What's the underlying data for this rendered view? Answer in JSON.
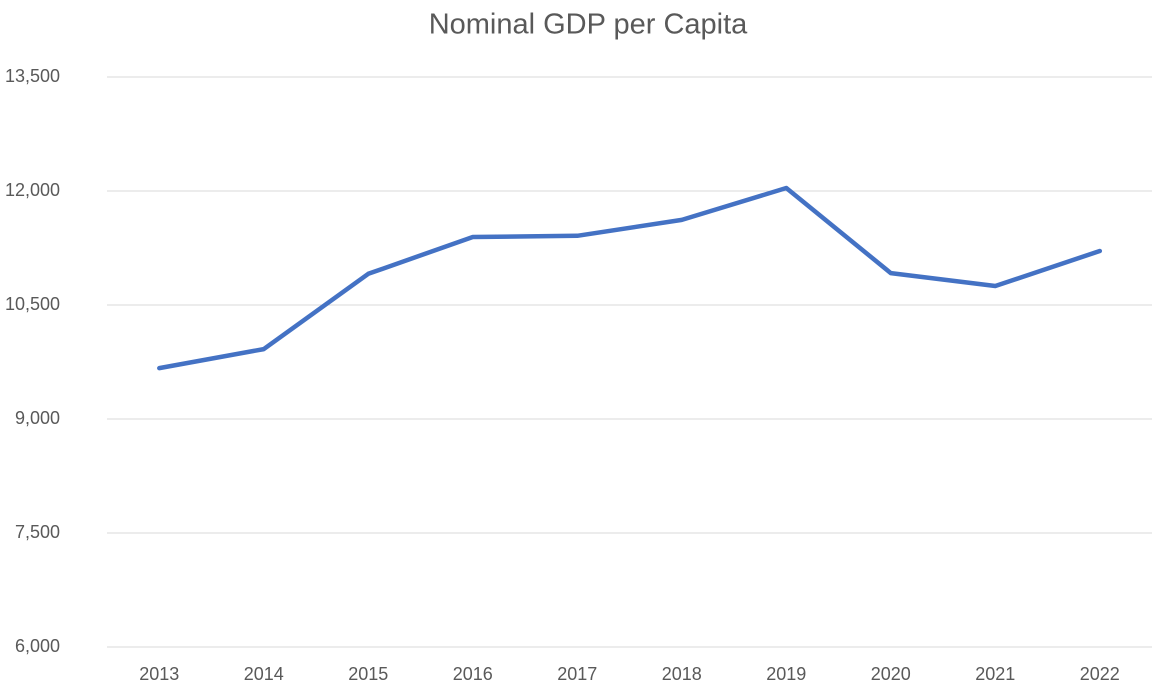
{
  "chart_data": {
    "type": "line",
    "title": "Nominal GDP per Capita",
    "categories": [
      "2013",
      "2014",
      "2015",
      "2016",
      "2017",
      "2018",
      "2019",
      "2020",
      "2021",
      "2022"
    ],
    "values": [
      9670,
      9920,
      10910,
      11395,
      11410,
      11620,
      12040,
      10920,
      10750,
      11210
    ],
    "color": "#4472c4",
    "ylim": [
      6000,
      13500
    ],
    "yticks": [
      {
        "value": 6000,
        "label": "6,000"
      },
      {
        "value": 7500,
        "label": "7,500"
      },
      {
        "value": 9000,
        "label": "9,000"
      },
      {
        "value": 10500,
        "label": "10,500"
      },
      {
        "value": 12000,
        "label": "12,000"
      },
      {
        "value": 13500,
        "label": "13,500"
      }
    ],
    "grid": true
  }
}
